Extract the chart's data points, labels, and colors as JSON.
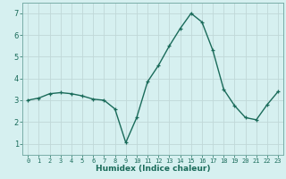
{
  "x": [
    0,
    1,
    2,
    3,
    4,
    5,
    6,
    7,
    8,
    9,
    10,
    11,
    12,
    13,
    14,
    15,
    16,
    17,
    18,
    19,
    20,
    21,
    22,
    23
  ],
  "y": [
    3.0,
    3.1,
    3.3,
    3.35,
    3.3,
    3.2,
    3.05,
    3.0,
    2.6,
    1.05,
    2.2,
    3.85,
    4.6,
    5.5,
    6.3,
    7.0,
    6.6,
    5.3,
    3.5,
    2.75,
    2.2,
    2.1,
    2.8,
    3.4
  ],
  "xlabel": "Humidex (Indice chaleur)",
  "ylabel": "",
  "xlim": [
    -0.5,
    23.5
  ],
  "ylim": [
    0.5,
    7.5
  ],
  "yticks": [
    1,
    2,
    3,
    4,
    5,
    6,
    7
  ],
  "xticks": [
    0,
    1,
    2,
    3,
    4,
    5,
    6,
    7,
    8,
    9,
    10,
    11,
    12,
    13,
    14,
    15,
    16,
    17,
    18,
    19,
    20,
    21,
    22,
    23
  ],
  "line_color": "#1a6b5a",
  "marker_color": "#1a6b5a",
  "bg_color": "#d6f0f0",
  "grid_color": "#c0d8d8",
  "tick_color": "#1a6b5a",
  "label_fontsize": 5.0,
  "xlabel_fontsize": 6.5,
  "marker_size": 3.5,
  "linewidth": 1.0
}
